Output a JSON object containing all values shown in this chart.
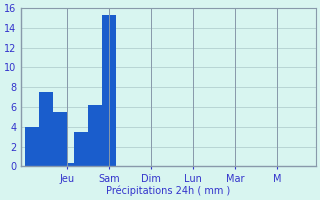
{
  "bar_color": "#1a5dcc",
  "bg_color": "#d8f5f0",
  "grid_color": "#b8d4d4",
  "axis_label_color": "#3333cc",
  "tick_color": "#3333cc",
  "spine_color": "#8899aa",
  "ylim": [
    0,
    16
  ],
  "yticks": [
    0,
    2,
    4,
    6,
    8,
    10,
    12,
    14,
    16
  ],
  "xlabel": "Précipitations 24h ( mm )",
  "bar_values": [
    4.0,
    4.0,
    7.5,
    7.5,
    5.5,
    5.5,
    0.3,
    3.5,
    3.5,
    6.2,
    6.2,
    15.3,
    15.3
  ],
  "bar_x": [
    1,
    2,
    3,
    4,
    5,
    6,
    7,
    8,
    9,
    10,
    11,
    12,
    13
  ],
  "n_total": 42,
  "day_tick_positions": [
    6.5,
    12.5,
    18.5,
    24.5,
    30.5,
    36.5
  ],
  "day_labels": [
    "Jeu",
    "Sam",
    "Dim",
    "Lun",
    "Mar",
    "M"
  ],
  "xlabel_fontsize": 7,
  "ytick_fontsize": 7,
  "xtick_fontsize": 7
}
